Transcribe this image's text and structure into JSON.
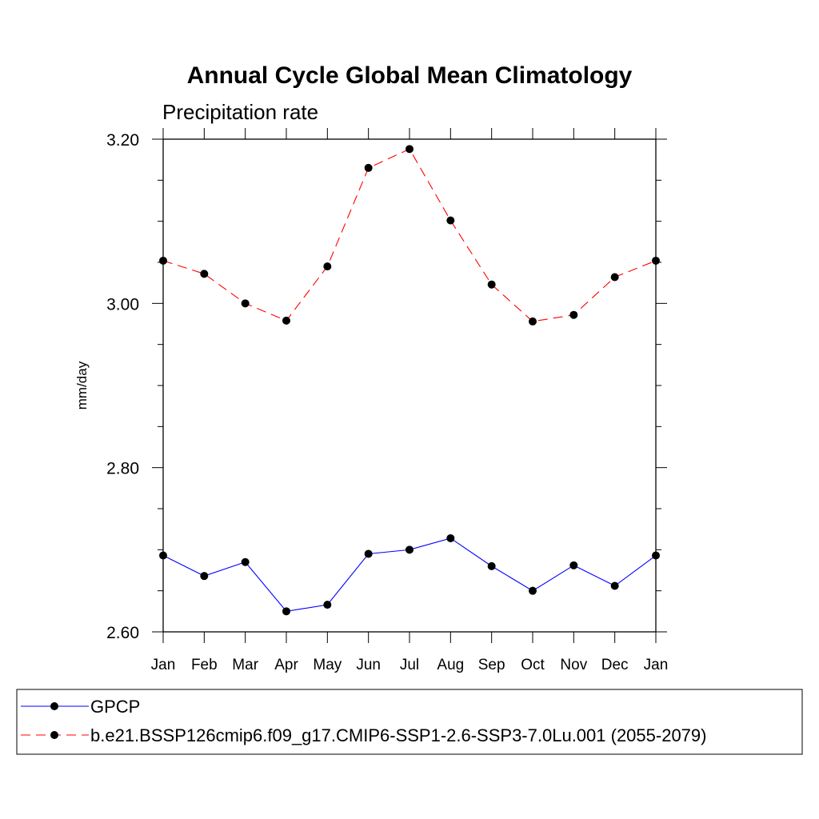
{
  "chart_data": {
    "type": "line",
    "title": "Annual Cycle Global Mean Climatology",
    "subtitle": "Precipitation rate",
    "xlabel": "",
    "ylabel": "mm/day",
    "categories": [
      "Jan",
      "Feb",
      "Mar",
      "Apr",
      "May",
      "Jun",
      "Jul",
      "Aug",
      "Sep",
      "Oct",
      "Nov",
      "Dec",
      "Jan"
    ],
    "ylim": [
      2.6,
      3.2
    ],
    "yticks": [
      "2.60",
      "2.80",
      "3.00",
      "3.20"
    ],
    "grid": false,
    "legend_position": "bottom",
    "series": [
      {
        "name": "GPCP",
        "color": "#0000ff",
        "line_style": "solid",
        "marker": "filled-circle",
        "values": [
          2.693,
          2.668,
          2.685,
          2.625,
          2.633,
          2.695,
          2.7,
          2.714,
          2.68,
          2.65,
          2.681,
          2.656,
          2.693
        ]
      },
      {
        "name": "b.e21.BSSP126cmip6.f09_g17.CMIP6-SSP1-2.6-SSP3-7.0Lu.001 (2055-2079)",
        "color": "#ff0000",
        "line_style": "dashed",
        "marker": "filled-circle",
        "values": [
          3.052,
          3.036,
          3.0,
          2.979,
          3.045,
          3.165,
          3.188,
          3.101,
          3.023,
          2.978,
          2.986,
          3.032,
          3.052
        ]
      }
    ]
  }
}
